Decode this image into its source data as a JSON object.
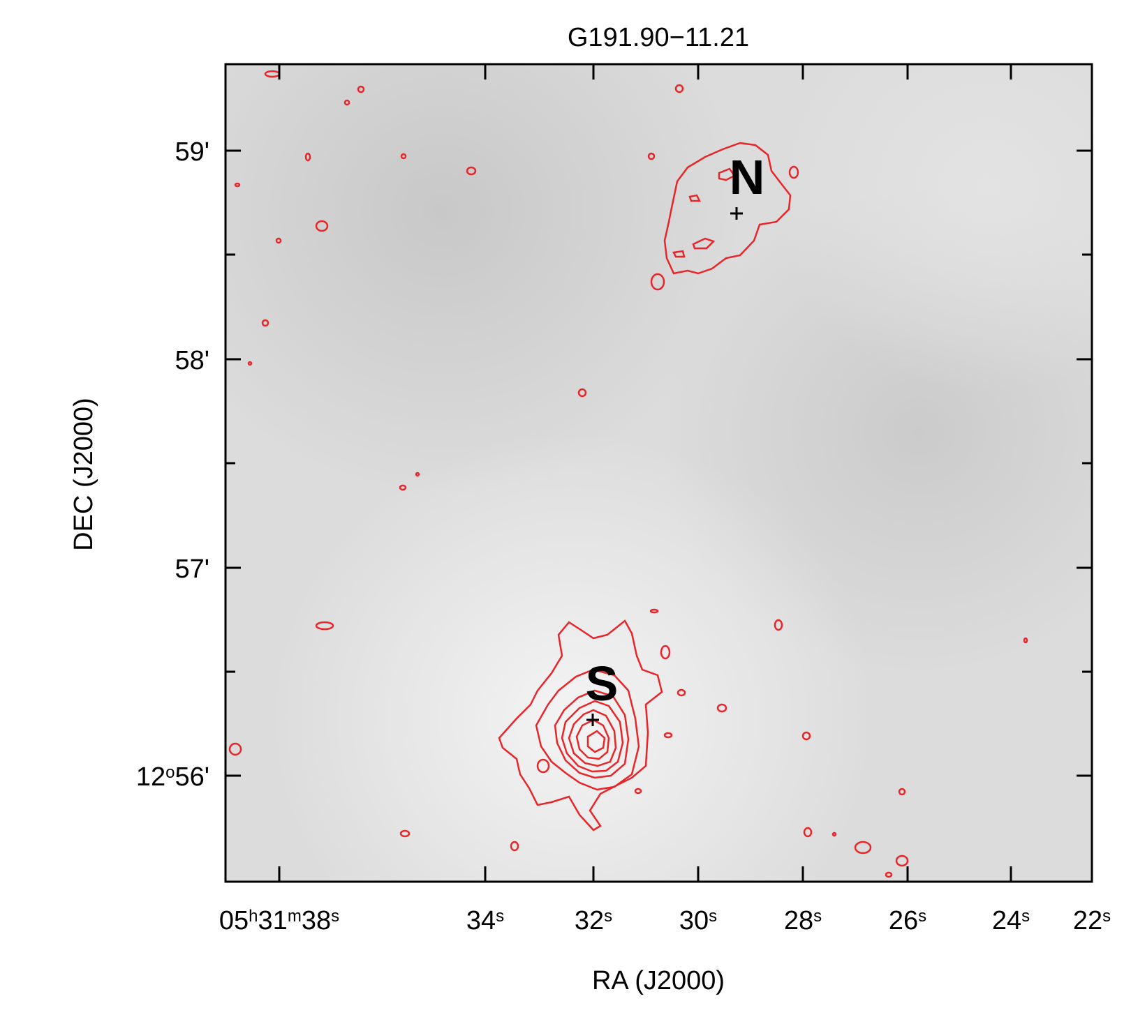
{
  "title": "G191.90−11.21",
  "x_axis": {
    "label": "RA (J2000)",
    "ticks": [
      {
        "sup": true,
        "parts": [
          "05",
          "h",
          "31",
          "m",
          "38",
          "s"
        ]
      },
      {
        "sup": true,
        "parts": [
          "",
          "",
          "",
          "",
          "34",
          "s"
        ]
      },
      {
        "sup": true,
        "parts": [
          "",
          "",
          "",
          "",
          "32",
          "s"
        ]
      },
      {
        "sup": true,
        "parts": [
          "",
          "",
          "",
          "",
          "30",
          "s"
        ]
      },
      {
        "sup": true,
        "parts": [
          "",
          "",
          "",
          "",
          "28",
          "s"
        ]
      },
      {
        "sup": true,
        "parts": [
          "",
          "",
          "",
          "",
          "26",
          "s"
        ]
      },
      {
        "sup": true,
        "parts": [
          "",
          "",
          "",
          "",
          "24",
          "s"
        ]
      },
      {
        "sup": true,
        "parts": [
          "",
          "",
          "",
          "",
          "22",
          "s"
        ]
      }
    ]
  },
  "y_axis": {
    "label": "DEC (J2000)",
    "ticks": [
      {
        "deg": "",
        "min": "59'"
      },
      {
        "deg": "",
        "min": "58'"
      },
      {
        "deg": "",
        "min": "57'"
      },
      {
        "deg": "12",
        "min": "56'"
      }
    ]
  },
  "sources": [
    {
      "name": "N"
    },
    {
      "name": "S"
    }
  ],
  "colors": {
    "contour": "#e8262a",
    "background_light": "#ededed",
    "background_dark": "#cccccc",
    "frame": "#000000"
  }
}
